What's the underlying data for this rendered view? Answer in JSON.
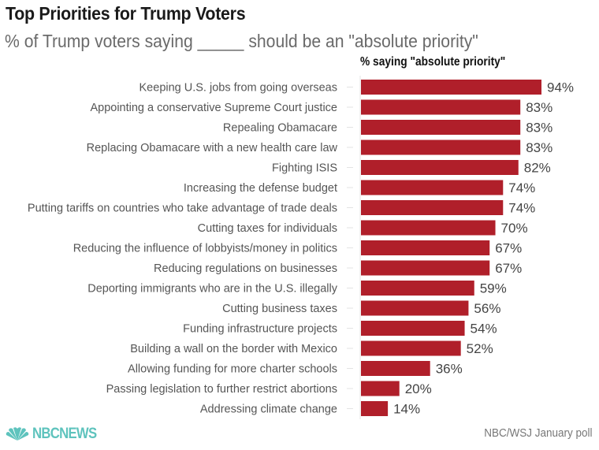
{
  "header": {
    "title": "Top Priorities for Trump Voters",
    "subtitle": "% of Trump voters saying _____ should be an \"absolute priority\""
  },
  "footer": {
    "brand": "NBCNEWS",
    "brand_icon": "peacock-icon",
    "brand_color": "#5ec3bd",
    "source": "NBC/WSJ January poll"
  },
  "chart_data": {
    "type": "bar",
    "orientation": "horizontal",
    "title": "Top Priorities for Trump Voters",
    "subtitle": "% of Trump voters saying _____ should be an \"absolute priority\"",
    "column_header": "% saying \"absolute priority\"",
    "xlabel": "",
    "ylabel": "",
    "xlim": [
      0,
      100
    ],
    "grid": false,
    "legend": "none",
    "bar_color": "#b01f2a",
    "value_suffix": "%",
    "categories": [
      "Keeping U.S. jobs from going overseas",
      "Appointing a conservative Supreme Court justice",
      "Repealing Obamacare",
      "Replacing Obamacare with a new health care law",
      "Fighting ISIS",
      "Increasing the defense budget",
      "Putting tariffs on countries who take advantage of trade deals",
      "Cutting taxes for individuals",
      "Reducing the influence of lobbyists/money in politics",
      "Reducing regulations on businesses",
      "Deporting immigrants who are in the U.S. illegally",
      "Cutting business taxes",
      "Funding infrastructure projects",
      "Building a wall on the border with Mexico",
      "Allowing funding for more charter schools",
      "Passing legislation to further restrict abortions",
      "Addressing climate change"
    ],
    "values": [
      94,
      83,
      83,
      83,
      82,
      74,
      74,
      70,
      67,
      67,
      59,
      56,
      54,
      52,
      36,
      20,
      14
    ]
  }
}
